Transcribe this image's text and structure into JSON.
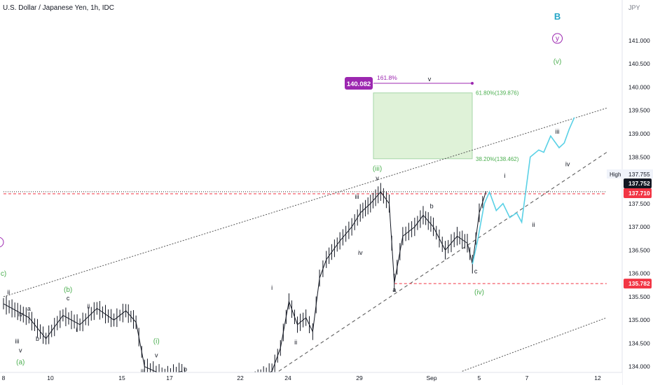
{
  "header": {
    "title": "U.S. Dollar / Japanese Yen, 1h, IDC",
    "currency": "JPY"
  },
  "chart_data": {
    "type": "line",
    "symbol": "USDJPY",
    "interval": "1h",
    "source": "IDC",
    "y_axis": {
      "ticks": [
        "141.000",
        "140.500",
        "140.000",
        "139.500",
        "139.000",
        "138.500",
        "138.000",
        "137.500",
        "137.000",
        "136.500",
        "136.000",
        "135.500",
        "135.000",
        "134.500",
        "134.000"
      ],
      "range": [
        133.8,
        141.6
      ]
    },
    "x_axis": {
      "ticks": [
        "8",
        "10",
        "15",
        "17",
        "22",
        "24",
        "29",
        "Sep",
        "5",
        "7",
        "12"
      ]
    },
    "price_labels": [
      {
        "id": "high_value",
        "text": "137.755",
        "caption": "High",
        "value": 137.755,
        "style": "plain"
      },
      {
        "id": "last",
        "text": "137.752",
        "value": 137.752,
        "style": "dark"
      },
      {
        "id": "red_level",
        "text": "137.710",
        "value": 137.71,
        "style": "red"
      },
      {
        "id": "support",
        "text": "135.782",
        "value": 135.782,
        "style": "red"
      }
    ],
    "target_box": {
      "upper_label": "61.80%(139.876)",
      "upper": 139.876,
      "lower_label": "38.20%(138.462)",
      "lower": 138.462,
      "fill": "#dff2d8",
      "border": "#a5d6a7"
    },
    "fib_extension": {
      "badge": "140.082",
      "level": 140.082,
      "label": "161.8%",
      "wave": "v",
      "color": "#9c27b0"
    },
    "price_series": {
      "name": "USDJPY",
      "points": [
        [
          0,
          135.35
        ],
        [
          1.5,
          135.05
        ],
        [
          2.5,
          134.6
        ],
        [
          3.5,
          135.1
        ],
        [
          4.5,
          134.9
        ],
        [
          5.5,
          135.25
        ],
        [
          6.5,
          135.0
        ],
        [
          7.2,
          135.2
        ],
        [
          7.8,
          134.95
        ],
        [
          8.3,
          134.0
        ],
        [
          9.5,
          133.8
        ],
        [
          10.5,
          133.9
        ],
        [
          11.0,
          133.5
        ],
        [
          12.0,
          133.6
        ],
        [
          13.0,
          133.4
        ],
        [
          15.8,
          133.9
        ],
        [
          16.3,
          134.4
        ],
        [
          16.8,
          135.4
        ],
        [
          17.3,
          134.9
        ],
        [
          17.8,
          135.05
        ],
        [
          18.2,
          134.75
        ],
        [
          18.6,
          135.9
        ],
        [
          19.0,
          136.3
        ],
        [
          19.8,
          136.7
        ],
        [
          20.5,
          137.0
        ],
        [
          21.0,
          137.3
        ],
        [
          21.6,
          137.5
        ],
        [
          22.2,
          137.75
        ],
        [
          22.7,
          137.5
        ],
        [
          23.0,
          135.8
        ],
        [
          23.5,
          136.8
        ],
        [
          24.2,
          137.0
        ],
        [
          24.7,
          137.25
        ],
        [
          25.3,
          137.0
        ],
        [
          26.0,
          136.5
        ],
        [
          26.7,
          136.8
        ],
        [
          27.3,
          136.65
        ],
        [
          27.6,
          136.2
        ],
        [
          28.0,
          137.3
        ],
        [
          28.4,
          137.76
        ]
      ]
    },
    "projection_series": {
      "name": "Projected path",
      "color": "#5ad1e6",
      "points": [
        [
          27.6,
          136.2
        ],
        [
          27.9,
          136.7
        ],
        [
          28.1,
          137.1
        ],
        [
          28.3,
          137.5
        ],
        [
          28.6,
          137.75
        ],
        [
          29.0,
          137.35
        ],
        [
          29.4,
          137.5
        ],
        [
          29.8,
          137.2
        ],
        [
          30.2,
          137.3
        ],
        [
          30.5,
          137.1
        ],
        [
          31.0,
          138.5
        ],
        [
          31.5,
          138.65
        ],
        [
          31.8,
          138.6
        ],
        [
          32.2,
          138.95
        ],
        [
          32.7,
          138.7
        ],
        [
          33.0,
          138.8
        ],
        [
          33.3,
          139.1
        ],
        [
          33.6,
          139.35
        ]
      ]
    },
    "lines": [
      {
        "id": "upper_channel",
        "from": [
          0,
          135.5
        ],
        "to": [
          35.5,
          139.55
        ],
        "style": "dotted"
      },
      {
        "id": "lower_channel",
        "from": [
          16.2,
          133.9
        ],
        "to": [
          35.5,
          138.6
        ],
        "style": "dashed"
      },
      {
        "id": "parallel_channel",
        "from": [
          27.0,
          133.9
        ],
        "to": [
          35.5,
          135.05
        ],
        "style": "dotted"
      },
      {
        "id": "high_line",
        "from": [
          0,
          137.755
        ],
        "to": [
          35.5,
          137.755
        ],
        "style": "dotted"
      },
      {
        "id": "resist_line",
        "from": [
          0,
          137.71
        ],
        "to": [
          35.5,
          137.71
        ],
        "style": "red-dashed"
      },
      {
        "id": "support_line",
        "from": [
          23.0,
          135.782
        ],
        "to": [
          35.5,
          135.782
        ],
        "style": "red-dashed"
      }
    ],
    "wave_labels": [
      {
        "text": "B",
        "x": 32.6,
        "y": 141.45,
        "color": "#26a6c7",
        "size": 13,
        "weight": "bold"
      },
      {
        "text": "y",
        "x": 32.6,
        "y": 141.0,
        "color": "#9c27b0",
        "size": 10,
        "circle": true
      },
      {
        "text": "(v)",
        "x": 32.6,
        "y": 140.5,
        "color": "#4caf50",
        "size": 10
      },
      {
        "text": "(iii)",
        "x": 22.0,
        "y": 138.2,
        "color": "#4caf50",
        "size": 10
      },
      {
        "text": "v",
        "x": 22.0,
        "y": 138.0,
        "color": "#131722",
        "size": 9
      },
      {
        "text": "iii",
        "x": 20.8,
        "y": 137.6,
        "color": "#131722",
        "size": 9
      },
      {
        "text": "iv",
        "x": 21.0,
        "y": 136.4,
        "color": "#131722",
        "size": 9
      },
      {
        "text": "b",
        "x": 25.2,
        "y": 137.4,
        "color": "#131722",
        "size": 9
      },
      {
        "text": "a",
        "x": 23.0,
        "y": 135.6,
        "color": "#131722",
        "size": 9
      },
      {
        "text": "c",
        "x": 27.8,
        "y": 136.0,
        "color": "#131722",
        "size": 9
      },
      {
        "text": "(iv)",
        "x": 28.0,
        "y": 135.55,
        "color": "#4caf50",
        "size": 10
      },
      {
        "text": "i",
        "x": 29.5,
        "y": 138.05,
        "color": "#131722",
        "size": 9
      },
      {
        "text": "ii",
        "x": 31.2,
        "y": 137.0,
        "color": "#131722",
        "size": 9
      },
      {
        "text": "iii",
        "x": 32.6,
        "y": 139.0,
        "color": "#131722",
        "size": 9
      },
      {
        "text": "iv",
        "x": 33.2,
        "y": 138.3,
        "color": "#131722",
        "size": 9
      },
      {
        "text": "i",
        "x": 15.8,
        "y": 135.65,
        "color": "#131722",
        "size": 9
      },
      {
        "text": "ii",
        "x": 17.2,
        "y": 134.48,
        "color": "#131722",
        "size": 9
      },
      {
        "text": "(i)",
        "x": 9.0,
        "y": 134.5,
        "color": "#4caf50",
        "size": 10
      },
      {
        "text": "v",
        "x": 9.0,
        "y": 134.2,
        "color": "#131722",
        "size": 9
      },
      {
        "text": "iii",
        "x": 8.2,
        "y": 133.85,
        "color": "#131722",
        "size": 9
      },
      {
        "text": "b",
        "x": 10.7,
        "y": 133.9,
        "color": "#131722",
        "size": 9
      },
      {
        "text": "(b)",
        "x": 3.8,
        "y": 135.6,
        "color": "#4caf50",
        "size": 10
      },
      {
        "text": "c",
        "x": 3.8,
        "y": 135.42,
        "color": "#131722",
        "size": 9
      },
      {
        "text": "a",
        "x": 1.5,
        "y": 135.2,
        "color": "#131722",
        "size": 9
      },
      {
        "text": "iv",
        "x": 1.0,
        "y": 135.08,
        "color": "#131722",
        "size": 9
      },
      {
        "text": "ii",
        "x": 5.0,
        "y": 135.25,
        "color": "#131722",
        "size": 9
      },
      {
        "text": "ii",
        "x": 0.3,
        "y": 135.55,
        "color": "#131722",
        "size": 9
      },
      {
        "text": "i",
        "x": 4.3,
        "y": 134.75,
        "color": "#131722",
        "size": 9
      },
      {
        "text": "iii",
        "x": 0.8,
        "y": 134.5,
        "color": "#131722",
        "size": 9
      },
      {
        "text": "b",
        "x": 2.0,
        "y": 134.55,
        "color": "#131722",
        "size": 9
      },
      {
        "text": "v",
        "x": 1.0,
        "y": 134.3,
        "color": "#131722",
        "size": 9
      },
      {
        "text": "(a)",
        "x": 1.0,
        "y": 134.05,
        "color": "#4caf50",
        "size": 10
      },
      {
        "text": "c)",
        "x": 0.0,
        "y": 135.95,
        "color": "#4caf50",
        "size": 10
      }
    ]
  }
}
